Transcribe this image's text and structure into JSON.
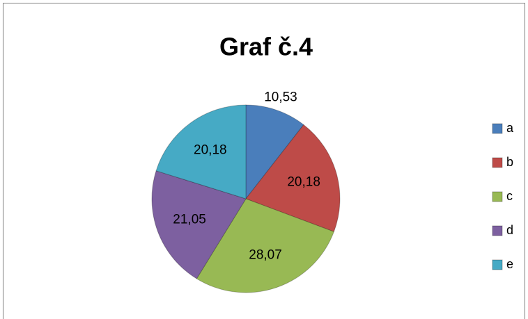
{
  "chart_data": {
    "type": "pie",
    "title": "Graf č.4",
    "categories": [
      "a",
      "b",
      "c",
      "d",
      "e"
    ],
    "values": [
      10.53,
      20.18,
      28.07,
      21.05,
      20.18
    ],
    "value_labels": [
      "10,53",
      "20,18",
      "28,07",
      "21,05",
      "20,18"
    ],
    "colors": [
      "#4a7ebb",
      "#be4b48",
      "#98b954",
      "#7d60a0",
      "#46aac5"
    ],
    "legend": "right"
  }
}
